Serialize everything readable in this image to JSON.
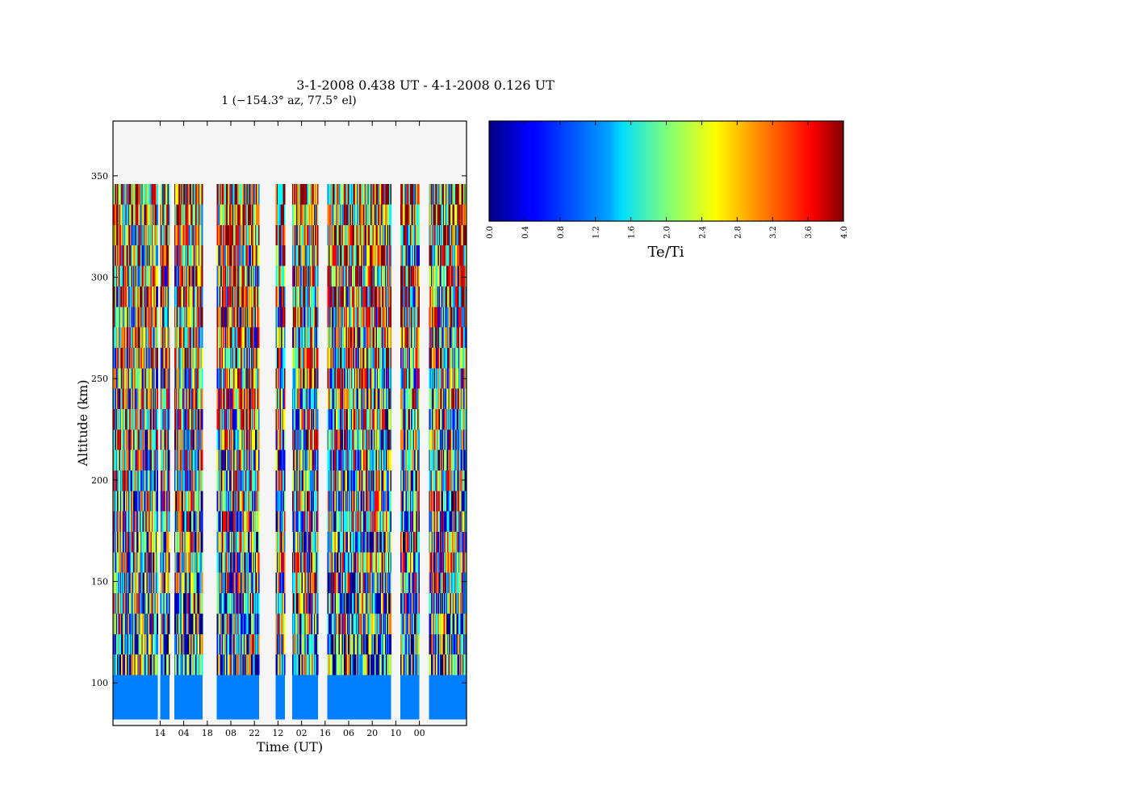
{
  "figure": {
    "title": "3-1-2008 0.438 UT - 4-1-2008 0.126 UT",
    "subtitle": "1 (−154.3° az, 77.5° el)"
  },
  "chart_data": {
    "type": "heatmap",
    "xlabel": "Time (UT)",
    "ylabel": "Altitude (km)",
    "x_tick_labels": [
      "14",
      "04",
      "18",
      "08",
      "22",
      "12",
      "02",
      "16",
      "06",
      "20",
      "10",
      "00"
    ],
    "y_ticks": [
      100,
      150,
      200,
      250,
      300,
      350
    ],
    "ylim": [
      79,
      377
    ],
    "data_altitude_range": [
      82,
      346
    ],
    "low_altitude_band": {
      "altitude_range": [
        82,
        104
      ],
      "value": 1.1
    },
    "data_blocks_in_x_tick_units": [
      [
        -1.0,
        0.9
      ],
      [
        1.0,
        1.4
      ],
      [
        1.6,
        2.8
      ],
      [
        3.4,
        5.2
      ],
      [
        5.9,
        6.3
      ],
      [
        6.6,
        7.7
      ],
      [
        8.1,
        10.8
      ],
      [
        11.2,
        12.0
      ],
      [
        12.4,
        14.0
      ]
    ],
    "x_tick_unit_range": [
      -1.0,
      14.0
    ],
    "time_columns_per_tick_unit": 23,
    "altitude_rows": 24,
    "upper_altitude_bias": 0.68,
    "colorbar": {
      "label": "Te/Ti",
      "min": 0.0,
      "max": 4.0,
      "ticks": [
        "0.0",
        "0.4",
        "0.8",
        "1.2",
        "1.6",
        "2.0",
        "2.4",
        "2.8",
        "3.2",
        "3.6",
        "4.0"
      ],
      "colormap": "jet"
    },
    "colors": {
      "missing_data": "#f5f5f5",
      "frame": "#000000",
      "jet": [
        "#00007f",
        "#0000ff",
        "#007fff",
        "#00ffff",
        "#7fff7f",
        "#ffff00",
        "#ff7f00",
        "#ff0000",
        "#7f0000"
      ]
    },
    "grid": false
  }
}
